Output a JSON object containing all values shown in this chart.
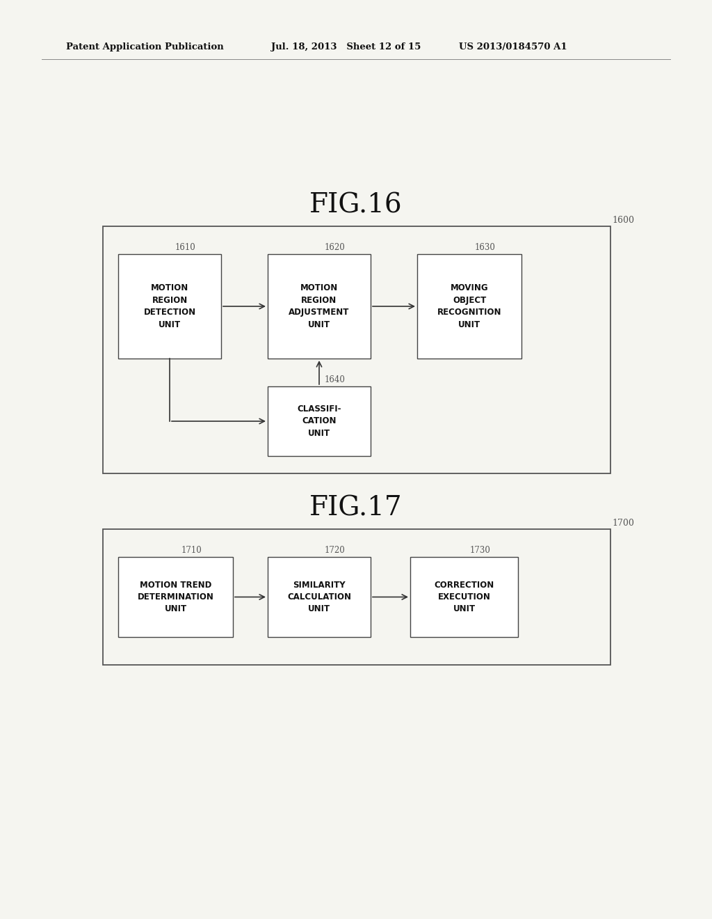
{
  "bg_color": "#f5f5f0",
  "header_left": "Patent Application Publication",
  "header_mid": "Jul. 18, 2013   Sheet 12 of 15",
  "header_right": "US 2013/0184570 A1",
  "fig16_title": "FIG.16",
  "fig17_title": "FIG.17",
  "fig16_label": "1600",
  "fig17_label": "1700",
  "box16_1_label": "1610",
  "box16_1_text": "MOTION\nREGION\nDETECTION\nUNIT",
  "box16_2_label": "1620",
  "box16_2_text": "MOTION\nREGION\nADJUSTMENT\nUNIT",
  "box16_3_label": "1630",
  "box16_3_text": "MOVING\nOBJECT\nRECOGNITION\nUNIT",
  "box16_4_label": "1640",
  "box16_4_text": "CLASSIFI-\nCATION\nUNIT",
  "box17_1_label": "1710",
  "box17_1_text": "MOTION TREND\nDETERMINATION\nUNIT",
  "box17_2_label": "1720",
  "box17_2_text": "SIMILARITY\nCALCULATION\nUNIT",
  "box17_3_label": "1730",
  "box17_3_text": "CORRECTION\nEXECUTION\nUNIT",
  "box_color": "#ffffff",
  "box_edge_color": "#444444",
  "outer_box_edge": "#555555",
  "text_color": "#111111",
  "arrow_color": "#333333",
  "label_color": "#555555",
  "header_line_color": "#888888"
}
